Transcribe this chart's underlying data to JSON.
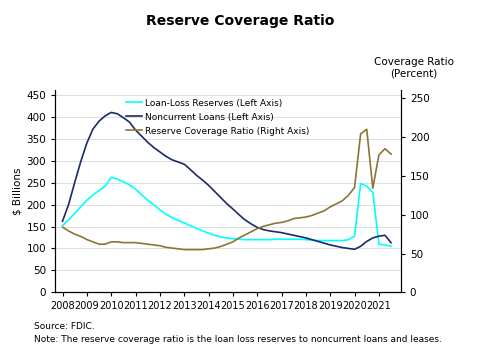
{
  "title": "Reserve Coverage Ratio",
  "ylabel_left": "$ Billions",
  "ylabel_right": "Coverage Ratio\n(Percent)",
  "ylim_left": [
    0,
    460
  ],
  "ylim_right": [
    0,
    260
  ],
  "yticks_left": [
    0,
    50,
    100,
    150,
    200,
    250,
    300,
    350,
    400,
    450
  ],
  "yticks_right": [
    0,
    50,
    100,
    150,
    200,
    250
  ],
  "source_text": "Source: FDIC.",
  "note_text": "Note: The reserve coverage ratio is the loan loss reserves to noncurrent loans and leases.",
  "years": [
    2008.0,
    2008.25,
    2008.5,
    2008.75,
    2009.0,
    2009.25,
    2009.5,
    2009.75,
    2010.0,
    2010.25,
    2010.5,
    2010.75,
    2011.0,
    2011.25,
    2011.5,
    2011.75,
    2012.0,
    2012.25,
    2012.5,
    2012.75,
    2013.0,
    2013.25,
    2013.5,
    2013.75,
    2014.0,
    2014.25,
    2014.5,
    2014.75,
    2015.0,
    2015.25,
    2015.5,
    2015.75,
    2016.0,
    2016.25,
    2016.5,
    2016.75,
    2017.0,
    2017.25,
    2017.5,
    2017.75,
    2018.0,
    2018.25,
    2018.5,
    2018.75,
    2019.0,
    2019.25,
    2019.5,
    2019.75,
    2020.0,
    2020.25,
    2020.5,
    2020.75,
    2021.0,
    2021.25,
    2021.5
  ],
  "loan_loss_reserves": [
    152,
    165,
    180,
    195,
    210,
    222,
    232,
    242,
    262,
    258,
    252,
    245,
    235,
    222,
    210,
    200,
    188,
    178,
    170,
    164,
    158,
    152,
    146,
    140,
    135,
    130,
    126,
    124,
    122,
    121,
    120,
    120,
    120,
    120,
    120,
    121,
    121,
    121,
    121,
    121,
    120,
    119,
    118,
    118,
    118,
    118,
    118,
    120,
    128,
    248,
    242,
    228,
    110,
    108,
    105
  ],
  "noncurrent_loans": [
    162,
    200,
    250,
    298,
    340,
    372,
    390,
    402,
    410,
    407,
    398,
    388,
    370,
    356,
    342,
    330,
    320,
    310,
    302,
    297,
    292,
    280,
    267,
    256,
    244,
    230,
    216,
    202,
    190,
    177,
    165,
    156,
    148,
    143,
    140,
    138,
    136,
    133,
    130,
    127,
    124,
    120,
    116,
    112,
    108,
    105,
    102,
    100,
    98,
    105,
    116,
    124,
    128,
    130,
    113
  ],
  "reserve_coverage_ratio": [
    84,
    79,
    75,
    72,
    68,
    65,
    62,
    62,
    65,
    65,
    64,
    64,
    64,
    63,
    62,
    61,
    60,
    58,
    57,
    56,
    55,
    55,
    55,
    55,
    56,
    57,
    59,
    62,
    65,
    70,
    74,
    78,
    82,
    85,
    87,
    89,
    90,
    92,
    95,
    96,
    97,
    99,
    102,
    105,
    110,
    114,
    118,
    125,
    135,
    204,
    210,
    134,
    177,
    185,
    178
  ],
  "color_loan_loss": "#00FFFF",
  "color_noncurrent": "#1B2A6B",
  "color_coverage_ratio": "#8B7535",
  "legend_entries": [
    "Loan-Loss Reserves (Left Axis)",
    "Noncurrent Loans (Left Axis)",
    "Reserve Coverage Ratio (Right Axis)"
  ],
  "xtick_labels": [
    "2008",
    "2009",
    "2010",
    "2011",
    "2012",
    "2013",
    "2014",
    "2015",
    "2016",
    "2017",
    "2018",
    "2019",
    "2020",
    "2021"
  ],
  "xtick_positions": [
    2008,
    2009,
    2010,
    2011,
    2012,
    2013,
    2014,
    2015,
    2016,
    2017,
    2018,
    2019,
    2020,
    2021
  ]
}
